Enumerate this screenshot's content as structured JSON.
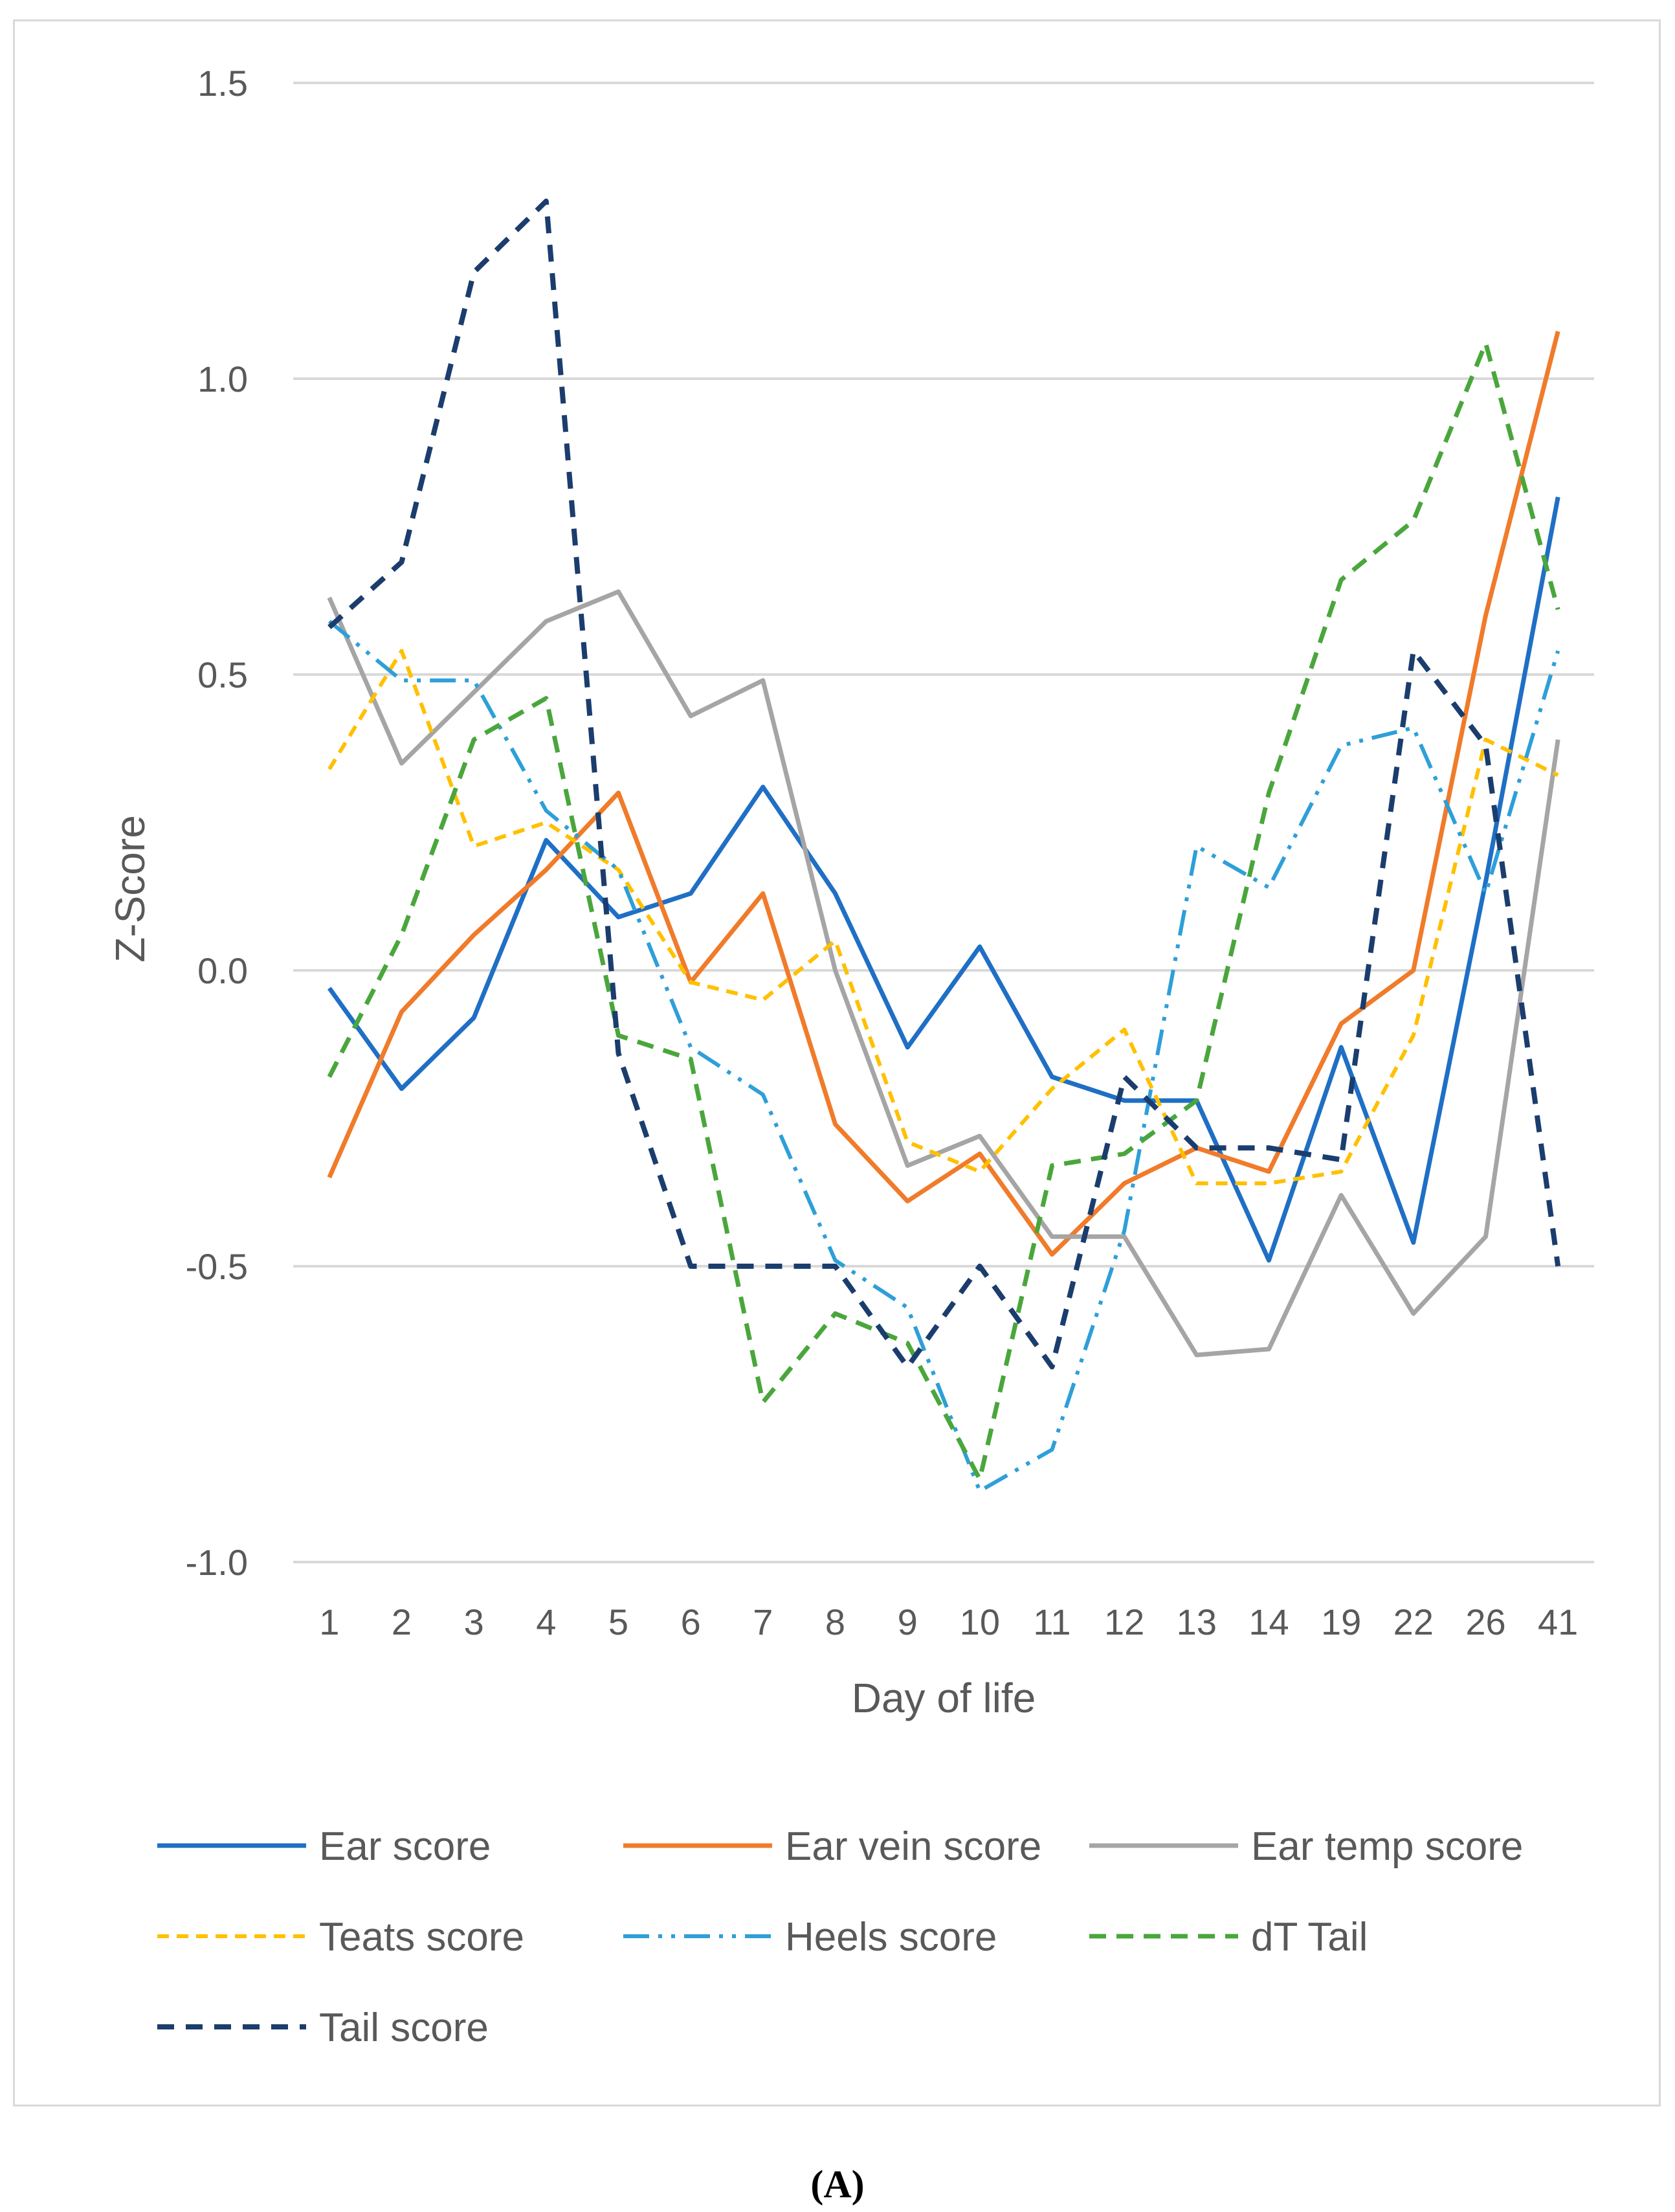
{
  "chart_data": {
    "type": "line",
    "title": "",
    "xlabel": "Day of life",
    "ylabel": "Z-Score",
    "ylim": [
      -1.0,
      1.5
    ],
    "yticks": [
      -1.0,
      -0.5,
      0.0,
      0.5,
      1.0,
      1.5
    ],
    "ytick_labels": [
      "-1.0",
      "-0.5",
      "0.0",
      "0.5",
      "1.0",
      "1.5"
    ],
    "grid": true,
    "legend_position": "bottom",
    "categories": [
      "1",
      "2",
      "3",
      "4",
      "5",
      "6",
      "7",
      "8",
      "9",
      "10",
      "11",
      "12",
      "13",
      "14",
      "19",
      "22",
      "26",
      "41"
    ],
    "series": [
      {
        "name": "Ear score",
        "color": "#1f6fc5",
        "style": "solid",
        "values": [
          -0.03,
          -0.2,
          -0.08,
          0.22,
          0.09,
          0.13,
          0.31,
          0.13,
          -0.13,
          0.04,
          -0.18,
          -0.22,
          -0.22,
          -0.49,
          -0.13,
          -0.46,
          0.15,
          0.8
        ]
      },
      {
        "name": "Ear vein score",
        "color": "#f07b2a",
        "style": "solid",
        "values": [
          -0.35,
          -0.07,
          0.06,
          0.17,
          0.3,
          -0.02,
          0.13,
          -0.26,
          -0.39,
          -0.31,
          -0.48,
          -0.36,
          -0.3,
          -0.34,
          -0.09,
          0.0,
          0.6,
          1.08
        ]
      },
      {
        "name": "Ear temp score",
        "color": "#a5a5a5",
        "style": "solid",
        "values": [
          0.63,
          0.35,
          0.47,
          0.59,
          0.64,
          0.43,
          0.49,
          0.0,
          -0.33,
          -0.28,
          -0.45,
          -0.45,
          -0.65,
          -0.64,
          -0.38,
          -0.58,
          -0.45,
          0.39
        ]
      },
      {
        "name": "Teats score",
        "color": "#ffc000",
        "style": "short-dash",
        "values": [
          0.34,
          0.54,
          0.21,
          0.25,
          0.17,
          -0.02,
          -0.05,
          0.05,
          -0.29,
          -0.34,
          -0.2,
          -0.1,
          -0.36,
          -0.36,
          -0.34,
          -0.11,
          0.39,
          0.33
        ]
      },
      {
        "name": "Heels score",
        "color": "#2e9fd8",
        "style": "dash-dot-dot",
        "values": [
          0.59,
          0.49,
          0.49,
          0.27,
          0.17,
          -0.13,
          -0.21,
          -0.49,
          -0.57,
          -0.88,
          -0.81,
          -0.44,
          0.21,
          0.14,
          0.38,
          0.41,
          0.13,
          0.54
        ]
      },
      {
        "name": "dT Tail",
        "color": "#4aa63c",
        "style": "dash",
        "values": [
          -0.18,
          0.06,
          0.39,
          0.46,
          -0.11,
          -0.15,
          -0.73,
          -0.58,
          -0.63,
          -0.86,
          -0.33,
          -0.31,
          -0.22,
          0.3,
          0.66,
          0.76,
          1.06,
          0.61
        ]
      },
      {
        "name": "Tail score",
        "color": "#1b3d6e",
        "style": "bold-dash",
        "values": [
          0.58,
          0.69,
          1.18,
          1.3,
          -0.14,
          -0.5,
          -0.5,
          -0.5,
          -0.67,
          -0.5,
          -0.67,
          -0.18,
          -0.3,
          -0.3,
          -0.32,
          0.54,
          0.38,
          -0.5
        ]
      }
    ]
  },
  "caption": "(A)"
}
